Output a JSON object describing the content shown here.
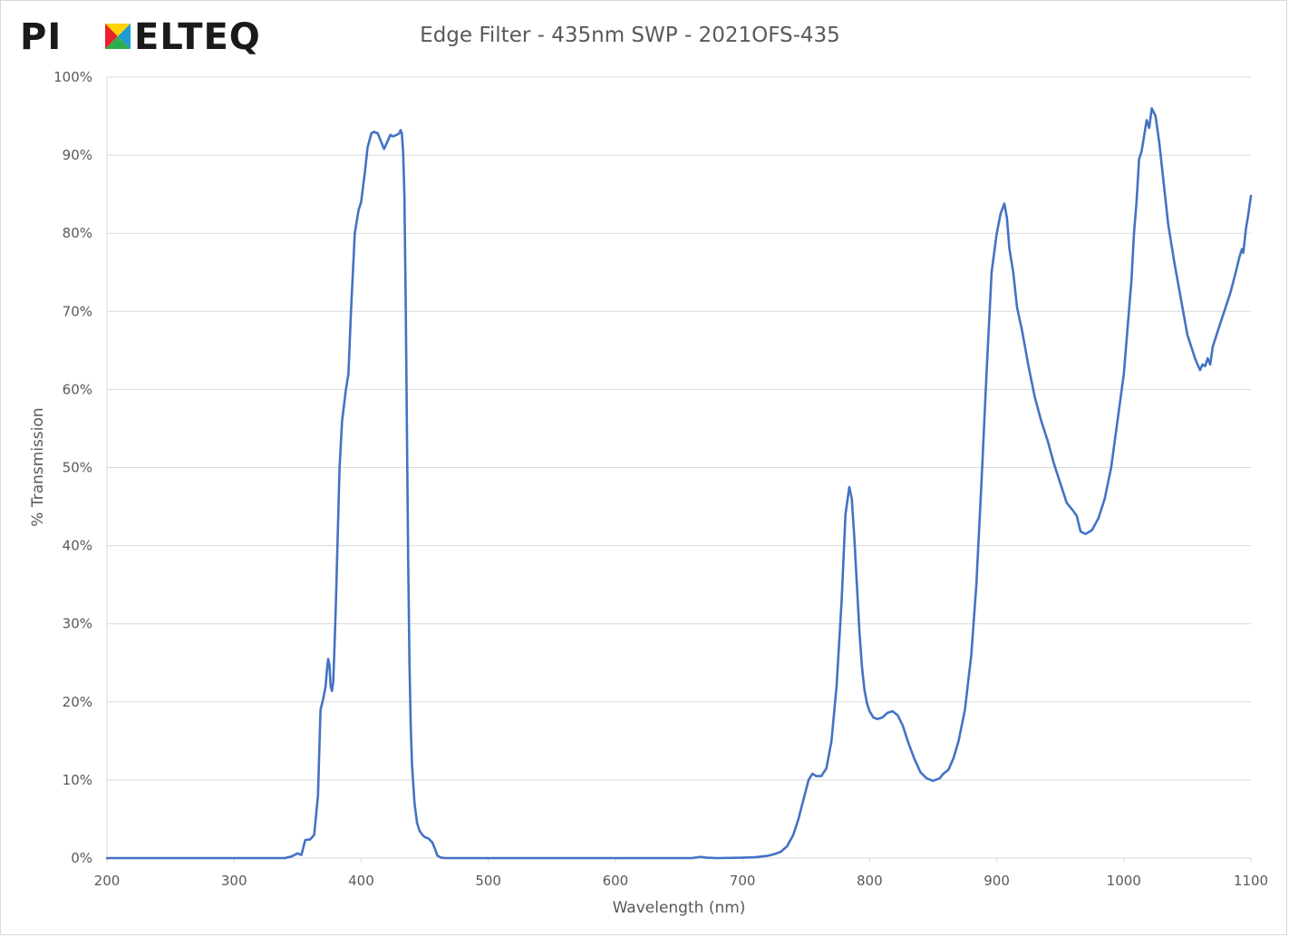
{
  "brand": {
    "logo_text_left": "PI",
    "logo_text_right": "ELTEQ",
    "logo_colors": [
      "#e8212a",
      "#ffd400",
      "#1f9ad6",
      "#2fae4e"
    ]
  },
  "chart_data": {
    "type": "line",
    "title": "Edge Filter - 435nm SWP - 2021OFS-435",
    "xlabel": "Wavelength (nm)",
    "ylabel": "% Transmission",
    "xlim": [
      200,
      1100
    ],
    "ylim": [
      0,
      100
    ],
    "x_ticks": [
      200,
      300,
      400,
      500,
      600,
      700,
      800,
      900,
      1000,
      1100
    ],
    "x_tick_labels": [
      "200",
      "300",
      "400",
      "500",
      "600",
      "700",
      "800",
      "900",
      "1000",
      "1100"
    ],
    "y_ticks": [
      0,
      10,
      20,
      30,
      40,
      50,
      60,
      70,
      80,
      90,
      100
    ],
    "y_tick_labels": [
      "0%",
      "10%",
      "20%",
      "30%",
      "40%",
      "50%",
      "60%",
      "70%",
      "80%",
      "90%",
      "100%"
    ],
    "grid": "horizontal",
    "line_color": "#4472c4",
    "series": [
      {
        "x": [
          200,
          340,
          345,
          350,
          353,
          356,
          360,
          363,
          366,
          368,
          370,
          372,
          373,
          374,
          375,
          376,
          377,
          378,
          379,
          380,
          383,
          385,
          388,
          390,
          392,
          395,
          398,
          400,
          403,
          405,
          408,
          410,
          413,
          415,
          418,
          420,
          423,
          425,
          428,
          430,
          431,
          432,
          433,
          434,
          435,
          436,
          437,
          438,
          439,
          440,
          442,
          444,
          446,
          448,
          450,
          453,
          456,
          458,
          460,
          463,
          466,
          470,
          480,
          500,
          600,
          660,
          667,
          672,
          680,
          700,
          710,
          720,
          725,
          730,
          735,
          740,
          744,
          748,
          752,
          755,
          758,
          762,
          766,
          770,
          774,
          778,
          781,
          784,
          786,
          788,
          790,
          792,
          794,
          796,
          798,
          800,
          803,
          806,
          810,
          814,
          818,
          822,
          826,
          830,
          835,
          840,
          845,
          850,
          855,
          858,
          862,
          866,
          870,
          875,
          880,
          884,
          888,
          892,
          896,
          900,
          903,
          906,
          908,
          910,
          913,
          916,
          920,
          925,
          930,
          935,
          940,
          945,
          950,
          955,
          960,
          963,
          966,
          970,
          975,
          980,
          985,
          990,
          995,
          1000,
          1003,
          1006,
          1008,
          1010,
          1012,
          1014,
          1016,
          1018,
          1020,
          1022,
          1025,
          1028,
          1031,
          1035,
          1040,
          1045,
          1050,
          1053,
          1056,
          1058,
          1060,
          1062,
          1064,
          1066,
          1068,
          1070,
          1073,
          1076,
          1080,
          1084,
          1088,
          1091,
          1093,
          1094,
          1096,
          1098,
          1100
        ],
        "y": [
          0,
          0,
          0.2,
          0.6,
          0.4,
          2.3,
          2.4,
          3.0,
          8.0,
          19.0,
          20.3,
          22.0,
          24.0,
          25.5,
          24.8,
          22.0,
          21.4,
          22.5,
          27.0,
          32.0,
          50.0,
          56.0,
          60.0,
          62.0,
          70.0,
          80.0,
          83.0,
          84.0,
          88.0,
          91.0,
          92.8,
          93.0,
          92.8,
          92.0,
          90.8,
          91.5,
          92.6,
          92.4,
          92.6,
          92.8,
          93.2,
          92.8,
          90.5,
          85.0,
          72.0,
          55.0,
          38.0,
          25.0,
          17.0,
          12.0,
          7.0,
          4.5,
          3.5,
          3.0,
          2.7,
          2.5,
          2.0,
          1.2,
          0.3,
          0.05,
          0,
          0,
          0,
          0,
          0,
          0,
          0.15,
          0.05,
          0,
          0.05,
          0.1,
          0.3,
          0.5,
          0.8,
          1.5,
          3.0,
          5.0,
          7.5,
          10.0,
          10.8,
          10.5,
          10.5,
          11.5,
          15.0,
          22.0,
          33.0,
          44.0,
          47.5,
          46.0,
          41.0,
          35.0,
          29.0,
          24.5,
          21.5,
          19.8,
          18.8,
          18.0,
          17.8,
          18.0,
          18.6,
          18.8,
          18.3,
          17.0,
          15.0,
          12.8,
          11.0,
          10.2,
          9.9,
          10.2,
          10.8,
          11.3,
          12.8,
          15.0,
          19.0,
          26.0,
          35.0,
          48.0,
          62.0,
          75.0,
          80.0,
          82.5,
          83.8,
          82.0,
          78.0,
          75.0,
          70.5,
          67.5,
          63.0,
          59.0,
          56.0,
          53.5,
          50.5,
          48.0,
          45.5,
          44.5,
          43.8,
          41.8,
          41.5,
          42.0,
          43.5,
          46.0,
          50.0,
          56.0,
          62.0,
          68.0,
          74.0,
          80.0,
          84.0,
          89.5,
          90.5,
          92.5,
          94.5,
          93.5,
          96.0,
          95.0,
          91.5,
          87.0,
          81.0,
          76.0,
          71.5,
          67.0,
          65.5,
          64.0,
          63.2,
          62.5,
          63.2,
          63.0,
          64.0,
          63.2,
          65.5,
          67.0,
          68.5,
          70.5,
          72.5,
          75.0,
          77.0,
          78.0,
          77.5,
          80.5,
          82.5,
          84.8
        ]
      }
    ]
  }
}
